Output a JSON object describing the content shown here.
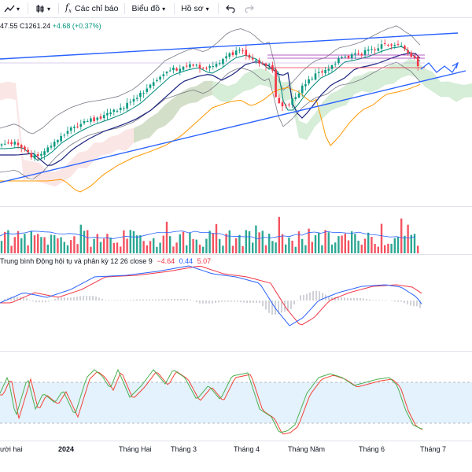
{
  "toolbar": {
    "indicators_label": "Các chỉ báo",
    "chart_label": "Biểu đồ",
    "profile_label": "Hồ sơ",
    "icons": [
      "line-chart-icon",
      "chevron-down-icon",
      "candle-icon",
      "chevron-down-icon",
      "function-icon",
      "chart-icon",
      "chevron-down-icon",
      "profile-chevron",
      "undo-icon",
      "redo-icon"
    ]
  },
  "price_legend": {
    "partial_low": "47.55",
    "close": "C1261.24",
    "change": "+4.68 (+0.37%)"
  },
  "macd_legend": {
    "title": "Trung bình Động hội tụ và phân kỳ 12 26 close 9",
    "hist": "−4.64",
    "macd": "0.44",
    "signal": "5.07"
  },
  "time_axis": {
    "labels": [
      "ười hai",
      "2024",
      "Tháng Hai",
      "Tháng 3",
      "Tháng 4",
      "Tháng Năm",
      "Tháng 6",
      "Tháng 7"
    ]
  },
  "colors": {
    "up": "#089981",
    "down": "#f23645",
    "trendline": "#2962ff",
    "cloud_green": "#a5d6a7",
    "cloud_red": "#ef9a9a",
    "bollinger": "#131722",
    "ma_fast": "#00897b",
    "ma_mid": "#1a237e",
    "ma_slow": "#ff9800",
    "stoch_k": "#4caf50",
    "stoch_d": "#f44336",
    "stoch_band": "#e3f2fd"
  }
}
